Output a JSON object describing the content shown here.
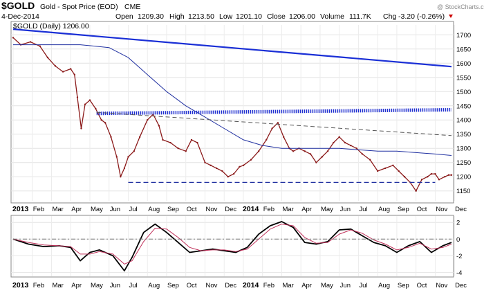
{
  "header": {
    "symbol": "$GOLD",
    "name": "Gold - Spot Price (EOD)",
    "exchange": "CME",
    "date": "4-Dec-2014",
    "watermark": "@ StockCharts.com",
    "open_label": "Open",
    "open": "1209.30",
    "high_label": "High",
    "high": "1213.50",
    "low_label": "Low",
    "low": "1201.10",
    "close_label": "Close",
    "close": "1206.00",
    "volume_label": "Volume",
    "volume": "111.7K",
    "chg_label": "Chg",
    "chg": "-3.20 (-0.26%)",
    "legend": "$GOLD (Daily) 1206.00"
  },
  "colors": {
    "price": "#8b1a1a",
    "trendline": "#1a2fd6",
    "moving_average": "#1f2fa0",
    "resistance_dots": "#1f2fd0",
    "support_dash": "#1f2fa0",
    "gray_trend": "#555555",
    "oscillator": "#000000",
    "signal": "#c0305a",
    "chg_arrow": "#cc0000"
  },
  "chart_data": [
    {
      "type": "line",
      "title": "Gold - Spot Price (EOD)",
      "x_axis_labels": [
        "2013",
        "Feb",
        "Mar",
        "Apr",
        "May",
        "Jun",
        "Jul",
        "Aug",
        "Sep",
        "Oct",
        "Nov",
        "Dec",
        "2014",
        "Feb",
        "Mar",
        "Apr",
        "May",
        "Jun",
        "Jul",
        "Aug",
        "Sep",
        "Oct",
        "Nov",
        "Dec"
      ],
      "y_ticks": [
        1150,
        1200,
        1250,
        1300,
        1350,
        1400,
        1450,
        1500,
        1550,
        1600,
        1650,
        1700
      ],
      "ylim": [
        1120,
        1730
      ],
      "series": [
        {
          "name": "$GOLD (Daily)",
          "x": [
            0,
            0.4,
            0.9,
            1.4,
            1.8,
            2.2,
            2.6,
            3.0,
            3.2,
            3.35,
            3.55,
            3.75,
            4.0,
            4.3,
            4.6,
            4.8,
            5.1,
            5.4,
            5.6,
            5.8,
            6.0,
            6.3,
            6.6,
            7.0,
            7.3,
            7.6,
            7.8,
            8.2,
            8.6,
            9.0,
            9.3,
            9.6,
            10.0,
            10.3,
            10.6,
            10.9,
            11.2,
            11.5,
            11.8,
            12.0,
            12.4,
            12.8,
            13.2,
            13.5,
            13.8,
            14.1,
            14.4,
            14.6,
            14.9,
            15.2,
            15.5,
            15.8,
            16.1,
            16.4,
            16.7,
            17.0,
            17.3,
            17.6,
            17.9,
            18.2,
            18.6,
            19.0,
            19.4,
            19.8,
            20.1,
            20.4,
            20.7,
            21.0,
            21.3,
            21.6,
            21.8,
            22.0,
            22.2,
            22.5,
            22.7,
            22.85
          ],
          "values": [
            1690,
            1665,
            1675,
            1660,
            1620,
            1590,
            1570,
            1580,
            1560,
            1480,
            1370,
            1455,
            1470,
            1440,
            1400,
            1390,
            1340,
            1270,
            1200,
            1230,
            1270,
            1290,
            1340,
            1400,
            1420,
            1380,
            1330,
            1320,
            1300,
            1290,
            1330,
            1320,
            1250,
            1240,
            1230,
            1220,
            1200,
            1210,
            1235,
            1240,
            1260,
            1290,
            1330,
            1370,
            1390,
            1340,
            1300,
            1290,
            1300,
            1290,
            1280,
            1250,
            1270,
            1290,
            1320,
            1340,
            1320,
            1310,
            1300,
            1280,
            1260,
            1220,
            1230,
            1240,
            1220,
            1200,
            1180,
            1150,
            1190,
            1200,
            1210,
            1210,
            1190,
            1200,
            1206,
            1206
          ]
        },
        {
          "name": "moving average",
          "x": [
            0,
            2,
            3.5,
            5,
            6,
            7,
            8,
            9,
            10,
            11,
            12,
            13,
            14,
            15,
            16,
            17,
            18,
            19,
            20,
            21,
            22,
            22.85
          ],
          "values": [
            1665,
            1665,
            1665,
            1655,
            1620,
            1560,
            1500,
            1450,
            1410,
            1370,
            1330,
            1310,
            1300,
            1300,
            1300,
            1300,
            1295,
            1290,
            1290,
            1285,
            1280,
            1275
          ]
        },
        {
          "name": "long trendline",
          "x": [
            0,
            22.85
          ],
          "values": [
            1720,
            1588
          ]
        },
        {
          "name": "resistance",
          "x": [
            4.35,
            22.85
          ],
          "values": [
            1423,
            1436
          ]
        },
        {
          "name": "gray trendline",
          "x": [
            4.35,
            22.85
          ],
          "values": [
            1427,
            1345
          ]
        },
        {
          "name": "support",
          "x": [
            6,
            22.0
          ],
          "values": [
            1180,
            1180
          ]
        }
      ]
    },
    {
      "type": "line",
      "x_axis_labels": [
        "2013",
        "Feb",
        "Mar",
        "Apr",
        "May",
        "Jun",
        "Jul",
        "Aug",
        "Sep",
        "Oct",
        "Nov",
        "Dec",
        "2014",
        "Feb",
        "Mar",
        "Apr",
        "May",
        "Jun",
        "Jul",
        "Aug",
        "Sep",
        "Oct",
        "Nov",
        "Dec"
      ],
      "y_ticks": [
        -4,
        -2,
        0,
        2
      ],
      "ylim": [
        -4.3,
        2.6
      ],
      "series": [
        {
          "name": "oscillator",
          "x": [
            0,
            0.8,
            1.6,
            2.4,
            3.0,
            3.5,
            4.0,
            4.5,
            5.2,
            5.8,
            6.2,
            6.8,
            7.4,
            8.0,
            8.6,
            9.2,
            9.8,
            10.4,
            11.0,
            11.6,
            12.2,
            12.8,
            13.4,
            14.0,
            14.6,
            15.2,
            15.8,
            16.4,
            17.0,
            17.6,
            18.2,
            18.8,
            19.4,
            20.0,
            20.6,
            21.2,
            21.8,
            22.4,
            22.85
          ],
          "values": [
            0,
            -0.6,
            -0.9,
            -0.8,
            -1.0,
            -2.6,
            -1.6,
            -1.3,
            -2.0,
            -3.8,
            -2.2,
            0.8,
            1.8,
            0.8,
            -0.4,
            -1.6,
            -1.4,
            -1.2,
            -1.4,
            -1.6,
            -1.0,
            0.6,
            1.6,
            2.1,
            1.4,
            -0.4,
            -0.6,
            -0.3,
            1.1,
            1.2,
            0.4,
            -0.4,
            -0.8,
            -1.6,
            -0.8,
            -0.3,
            -1.6,
            -0.8,
            -0.4
          ]
        },
        {
          "name": "signal",
          "x": [
            0,
            0.8,
            1.6,
            2.4,
            3.0,
            3.5,
            4.0,
            4.5,
            5.2,
            5.8,
            6.2,
            6.8,
            7.4,
            8.0,
            8.6,
            9.2,
            9.8,
            10.4,
            11.0,
            11.6,
            12.2,
            12.8,
            13.4,
            14.0,
            14.6,
            15.2,
            15.8,
            16.4,
            17.0,
            17.6,
            18.2,
            18.8,
            19.4,
            20.0,
            20.6,
            21.2,
            21.8,
            22.4,
            22.85
          ],
          "values": [
            0,
            -0.4,
            -0.7,
            -0.8,
            -0.9,
            -1.8,
            -1.8,
            -1.5,
            -1.8,
            -3.0,
            -2.6,
            -0.3,
            1.3,
            1.2,
            0.2,
            -1.0,
            -1.4,
            -1.3,
            -1.3,
            -1.5,
            -1.2,
            0.0,
            1.2,
            1.8,
            1.6,
            0.2,
            -0.5,
            -0.4,
            0.6,
            1.1,
            0.7,
            -0.1,
            -0.6,
            -1.3,
            -1.0,
            -0.5,
            -1.2,
            -1.0,
            -0.6
          ]
        },
        {
          "name": "zero line",
          "x": [
            0,
            22.85
          ],
          "values": [
            0,
            0
          ]
        }
      ]
    }
  ]
}
